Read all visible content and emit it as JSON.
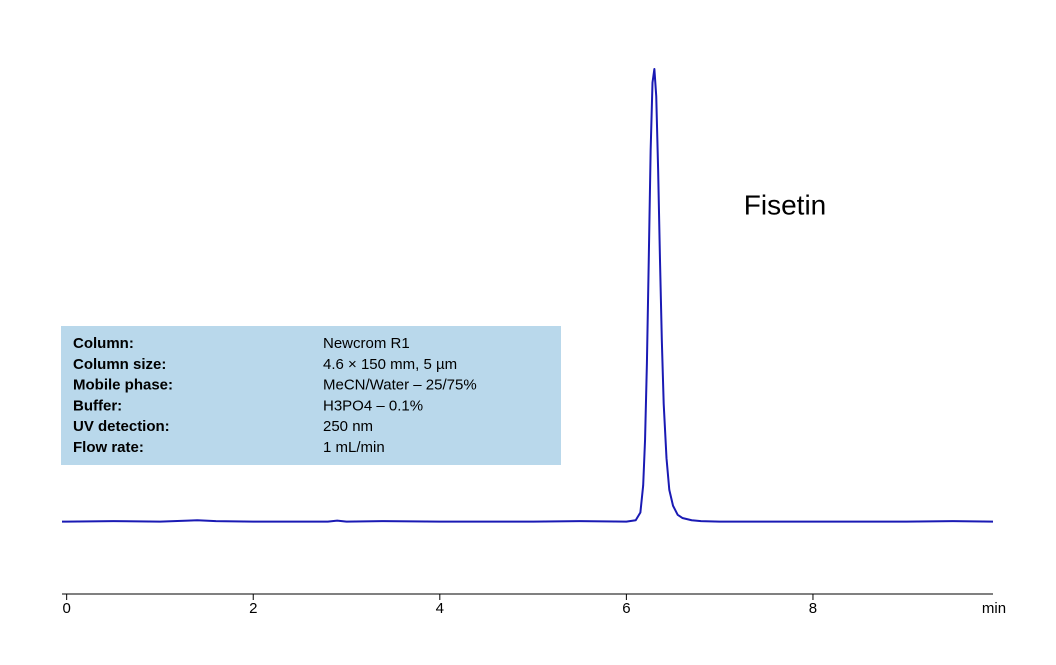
{
  "chart_data": {
    "type": "line",
    "annotation": "Fisetin",
    "x_axis_label": "min",
    "info_table": [
      [
        "Column:",
        "Newcrom R1"
      ],
      [
        "Column size:",
        "4.6 × 150 mm, 5 µm"
      ],
      [
        "Mobile phase:",
        "MeCN/Water  – 25/75%"
      ],
      [
        "Buffer:",
        "H3PO4  – 0.1%"
      ],
      [
        "UV detection:",
        "250 nm"
      ],
      [
        "Flow rate:",
        "1 mL/min"
      ]
    ],
    "x": [
      -0.05,
      0,
      0.5,
      1.0,
      1.3,
      1.4,
      1.6,
      2,
      2.8,
      2.9,
      3.0,
      3.4,
      4,
      5,
      5.5,
      6,
      6.1,
      6.15,
      6.18,
      6.2,
      6.22,
      6.24,
      6.26,
      6.28,
      6.3,
      6.32,
      6.34,
      6.36,
      6.38,
      6.4,
      6.43,
      6.46,
      6.5,
      6.55,
      6.6,
      6.7,
      6.8,
      7,
      8,
      9,
      9.5,
      9.93
    ],
    "series": [
      {
        "color": "#1a1ab4",
        "values": [
          0,
          0,
          0.1,
          0,
          0.2,
          0.3,
          0.1,
          0,
          0,
          0.2,
          0,
          0.1,
          0,
          0,
          0.1,
          0,
          0.3,
          2,
          8,
          18,
          35,
          58,
          82,
          97,
          100,
          94,
          78,
          58,
          40,
          26,
          14,
          7,
          3.5,
          1.5,
          0.8,
          0.3,
          0.1,
          0,
          0,
          0,
          0.1,
          0
        ]
      }
    ],
    "xlim": [
      -0.05,
      9.93
    ],
    "ylim": [
      -16,
      100
    ],
    "xticks": [
      0,
      2,
      4,
      6,
      8
    ]
  }
}
